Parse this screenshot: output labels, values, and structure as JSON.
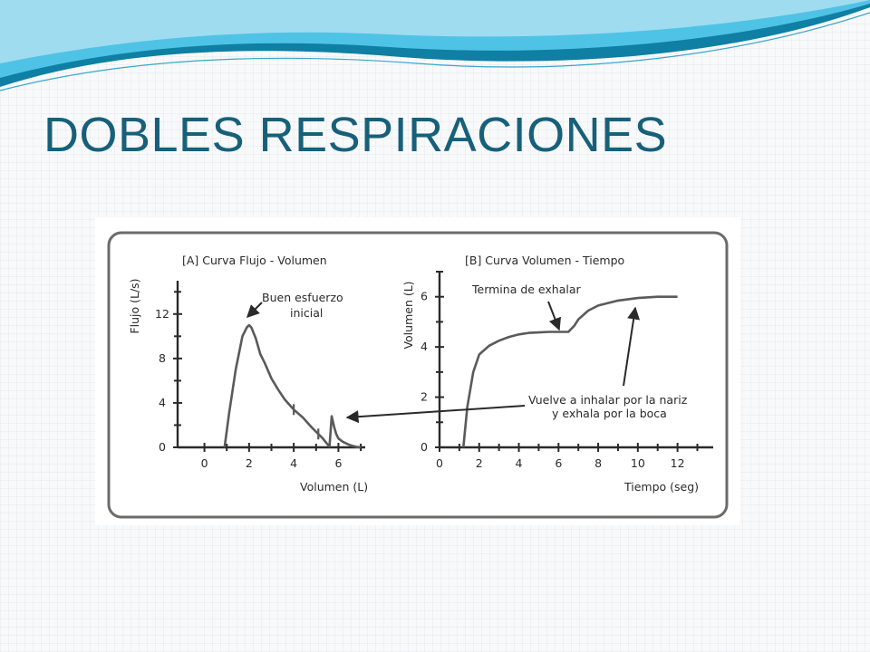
{
  "slide": {
    "title": "DOBLES RESPIRACIONES",
    "title_color": "#17607a",
    "wave_colors": [
      "#0f7fa3",
      "#4fc3e6",
      "#9fdcef"
    ]
  },
  "figure": {
    "panel_stroke": "#6b6b6b",
    "curve_color": "#5a5a5a",
    "annotations": {
      "buen_esfuerzo": [
        "Buen esfuerzo",
        "inicial"
      ],
      "termina": "Termina de exhalar",
      "vuelve": [
        "Vuelve a inhalar por la nariz",
        "y exhala por la boca"
      ]
    }
  },
  "chart_data": [
    {
      "type": "line",
      "title": "[A]  Curva Flujo - Volumen",
      "xlabel": "Volumen (L)",
      "ylabel": "Flujo (L/s)",
      "xlim": [
        -1.2,
        7.2
      ],
      "ylim": [
        0,
        15
      ],
      "xticks": [
        0,
        2,
        4,
        6
      ],
      "yticks": [
        0,
        4,
        8,
        12
      ],
      "series": [
        {
          "x": [
            0.9,
            1.1,
            1.4,
            1.7,
            1.9,
            2.0,
            2.1,
            2.3,
            2.5,
            2.7,
            3.0,
            3.3,
            3.6,
            4.0,
            4.4,
            4.8,
            5.1,
            5.3,
            5.5,
            5.6,
            5.7,
            5.8,
            5.9,
            6.0,
            6.2,
            6.4,
            6.6,
            6.8,
            7.0
          ],
          "y": [
            0,
            3,
            7,
            10,
            10.8,
            11,
            10.8,
            9.8,
            8.4,
            7.6,
            6.2,
            5.2,
            4.3,
            3.4,
            2.7,
            1.8,
            1.2,
            0.8,
            0.3,
            0.1,
            2.8,
            1.9,
            1.2,
            0.8,
            0.5,
            0.3,
            0.15,
            0.05,
            0
          ]
        }
      ]
    },
    {
      "type": "line",
      "title": "[B]  Curva Volumen - Tiempo",
      "xlabel": "Tiempo (seg)",
      "ylabel": "Volumen (L)",
      "xlim": [
        0,
        13.8
      ],
      "ylim": [
        0,
        7
      ],
      "xticks": [
        0,
        2,
        4,
        6,
        8,
        10,
        12
      ],
      "yticks": [
        0,
        2,
        4,
        6
      ],
      "series": [
        {
          "x": [
            1.2,
            1.4,
            1.7,
            2.0,
            2.5,
            3.0,
            3.5,
            4.0,
            4.5,
            5.0,
            5.5,
            6.0,
            6.5,
            6.8,
            7.0,
            7.5,
            8.0,
            9.0,
            10.0,
            11.0,
            12.0
          ],
          "y": [
            0,
            1.6,
            3.0,
            3.7,
            4.05,
            4.25,
            4.4,
            4.5,
            4.56,
            4.58,
            4.6,
            4.6,
            4.6,
            4.85,
            5.1,
            5.45,
            5.65,
            5.85,
            5.95,
            6.0,
            6.0
          ]
        }
      ]
    }
  ]
}
